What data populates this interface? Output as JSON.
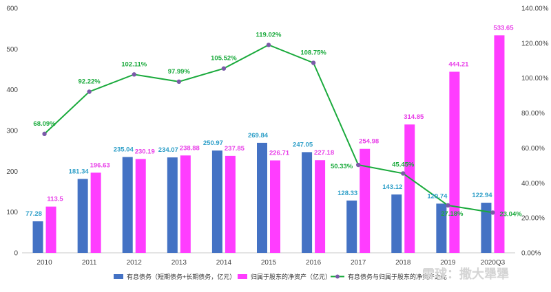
{
  "chart_data": {
    "type": "bar",
    "categories": [
      "2010",
      "2011",
      "2012",
      "2013",
      "2014",
      "2015",
      "2016",
      "2017",
      "2018",
      "2019",
      "2020Q3"
    ],
    "series": [
      {
        "name": "有息债务（短期债务+长期债务，亿元）",
        "type": "bar",
        "color": "#4472c4",
        "label_color": "#2e9fc8",
        "values": [
          77.28,
          181.34,
          235.04,
          234.07,
          250.97,
          269.84,
          247.05,
          128.33,
          143.12,
          120.74,
          122.94
        ],
        "labels": [
          "77.28",
          "181.34",
          "235.04",
          "234.07",
          "250.97",
          "269.84",
          "247.05",
          "128.33",
          "143.12",
          "120.74",
          "122.94"
        ]
      },
      {
        "name": "归属于股东的净资产（亿元）",
        "type": "bar",
        "color": "#ff3dff",
        "label_color": "#e83ee8",
        "values": [
          113.5,
          196.63,
          230.19,
          238.88,
          237.85,
          226.71,
          227.18,
          254.98,
          314.85,
          444.21,
          533.65
        ],
        "labels": [
          "113.5",
          "196.63",
          "230.19",
          "238.88",
          "237.85",
          "226.71",
          "227.18",
          "254.98",
          "314.85",
          "444.21",
          "533.65"
        ]
      },
      {
        "name": "有息债务与归属于股东的净资产之比",
        "type": "line",
        "axis": "right",
        "color": "#1aaa3c",
        "marker_color": "#7a5aa8",
        "values": [
          68.09,
          92.22,
          102.11,
          97.99,
          105.52,
          119.02,
          108.75,
          50.33,
          45.45,
          27.18,
          23.04
        ],
        "labels": [
          "68.09%",
          "92.22%",
          "102.11%",
          "97.99%",
          "105.52%",
          "119.02%",
          "108.75%",
          "50.33%",
          "45.45%",
          "27.18%",
          "23.04%"
        ]
      }
    ],
    "y_left": {
      "ylim": [
        0,
        600
      ],
      "ticks": [
        "0",
        "100",
        "200",
        "300",
        "400",
        "500",
        "600"
      ]
    },
    "y_right": {
      "ylim": [
        0,
        140
      ],
      "ticks": [
        "0.00%",
        "20.00%",
        "40.00%",
        "60.00%",
        "80.00%",
        "100.00%",
        "120.00%",
        "140.00%"
      ]
    },
    "grid": false,
    "legend": "bottom"
  },
  "watermark": "雪球：撒大犟犟"
}
